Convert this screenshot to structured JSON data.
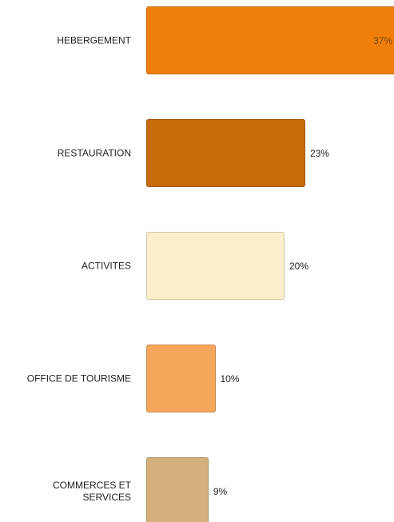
{
  "chart_data": {
    "type": "bar",
    "orientation": "horizontal",
    "categories": [
      "HEBERGEMENT",
      "RESTAURATION",
      "ACTIVITES",
      "OFFICE DE TOURISME",
      "COMMERCES ET SERVICES"
    ],
    "values": [
      37,
      23,
      20,
      10,
      9
    ],
    "value_labels": [
      "37%",
      "23%",
      "20%",
      "10%",
      "9%"
    ],
    "colors": [
      "#f07f0a",
      "#c96a0a",
      "#fdeecb",
      "#f5a65b",
      "#d4b07a"
    ]
  }
}
